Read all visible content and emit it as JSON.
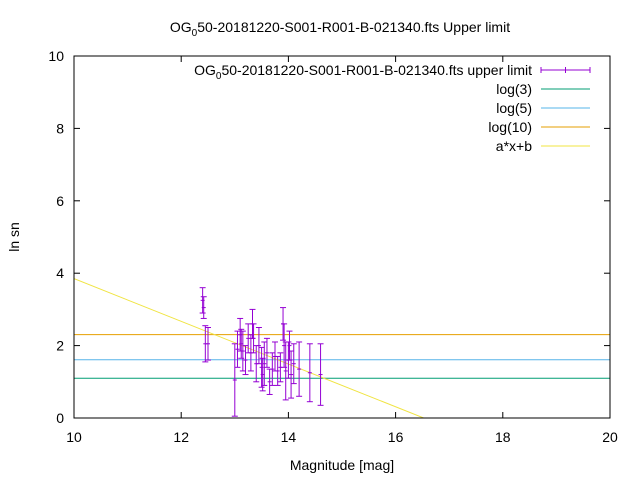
{
  "chart_data": {
    "type": "scatter",
    "title_main": "OG",
    "title_sub": "0",
    "title_rest": "50-20181220-S001-R001-B-021340.fts Upper limit",
    "xlabel": "Magnitude [mag]",
    "ylabel": "ln sn",
    "xlim": [
      10,
      20
    ],
    "ylim": [
      0,
      10
    ],
    "x_ticks": [
      10,
      12,
      14,
      16,
      18,
      20
    ],
    "y_ticks": [
      0,
      2,
      4,
      6,
      8,
      10
    ],
    "legend_position": "top-right",
    "grid": false,
    "series": [
      {
        "name_main": "OG",
        "name_sub": "0",
        "name_rest": "50-20181220-S001-R001-B-021340.fts upper limit",
        "kind": "errorbar",
        "color": "#9400d3",
        "points": [
          {
            "x": 12.4,
            "y": 3.25,
            "err": 0.35
          },
          {
            "x": 12.42,
            "y": 3.05,
            "err": 0.3
          },
          {
            "x": 12.45,
            "y": 2.05,
            "err": 0.5
          },
          {
            "x": 12.5,
            "y": 2.05,
            "err": 0.45
          },
          {
            "x": 13.0,
            "y": 1.05,
            "err": 1.0
          },
          {
            "x": 13.05,
            "y": 1.9,
            "err": 0.5
          },
          {
            "x": 13.1,
            "y": 2.3,
            "err": 0.45
          },
          {
            "x": 13.12,
            "y": 2.05,
            "err": 0.4
          },
          {
            "x": 13.15,
            "y": 1.85,
            "err": 0.55
          },
          {
            "x": 13.2,
            "y": 1.6,
            "err": 0.4
          },
          {
            "x": 13.25,
            "y": 2.2,
            "err": 0.4
          },
          {
            "x": 13.3,
            "y": 1.8,
            "err": 0.5
          },
          {
            "x": 13.33,
            "y": 2.6,
            "err": 0.4
          },
          {
            "x": 13.35,
            "y": 2.2,
            "err": 0.4
          },
          {
            "x": 13.4,
            "y": 1.5,
            "err": 0.5
          },
          {
            "x": 13.45,
            "y": 2.0,
            "err": 0.5
          },
          {
            "x": 13.5,
            "y": 1.4,
            "err": 0.55
          },
          {
            "x": 13.52,
            "y": 1.2,
            "err": 0.45
          },
          {
            "x": 13.55,
            "y": 1.5,
            "err": 0.6
          },
          {
            "x": 13.6,
            "y": 1.8,
            "err": 0.4
          },
          {
            "x": 13.65,
            "y": 1.0,
            "err": 0.35
          },
          {
            "x": 13.7,
            "y": 1.35,
            "err": 0.45
          },
          {
            "x": 13.75,
            "y": 1.7,
            "err": 0.4
          },
          {
            "x": 13.8,
            "y": 1.3,
            "err": 0.4
          },
          {
            "x": 13.85,
            "y": 1.4,
            "err": 0.4
          },
          {
            "x": 13.9,
            "y": 2.6,
            "err": 0.45
          },
          {
            "x": 13.92,
            "y": 2.0,
            "err": 0.6
          },
          {
            "x": 13.95,
            "y": 1.3,
            "err": 0.8
          },
          {
            "x": 14.0,
            "y": 1.6,
            "err": 0.5
          },
          {
            "x": 14.02,
            "y": 2.0,
            "err": 0.4
          },
          {
            "x": 14.05,
            "y": 1.2,
            "err": 0.65
          },
          {
            "x": 14.1,
            "y": 1.5,
            "err": 0.55
          },
          {
            "x": 14.2,
            "y": 1.35,
            "err": 0.75
          },
          {
            "x": 14.4,
            "y": 1.25,
            "err": 0.8
          },
          {
            "x": 14.6,
            "y": 1.2,
            "err": 0.85
          }
        ]
      },
      {
        "name": "log(3)",
        "kind": "hline",
        "y": 1.0986,
        "color": "#009e73"
      },
      {
        "name": "log(5)",
        "kind": "hline",
        "y": 1.6094,
        "color": "#56b4e9"
      },
      {
        "name": "log(10)",
        "kind": "hline",
        "y": 2.3026,
        "color": "#e69f00"
      },
      {
        "name": "a*x+b",
        "kind": "fit",
        "slope": -0.59,
        "intercept": 9.75,
        "color": "#f0e442"
      }
    ]
  }
}
